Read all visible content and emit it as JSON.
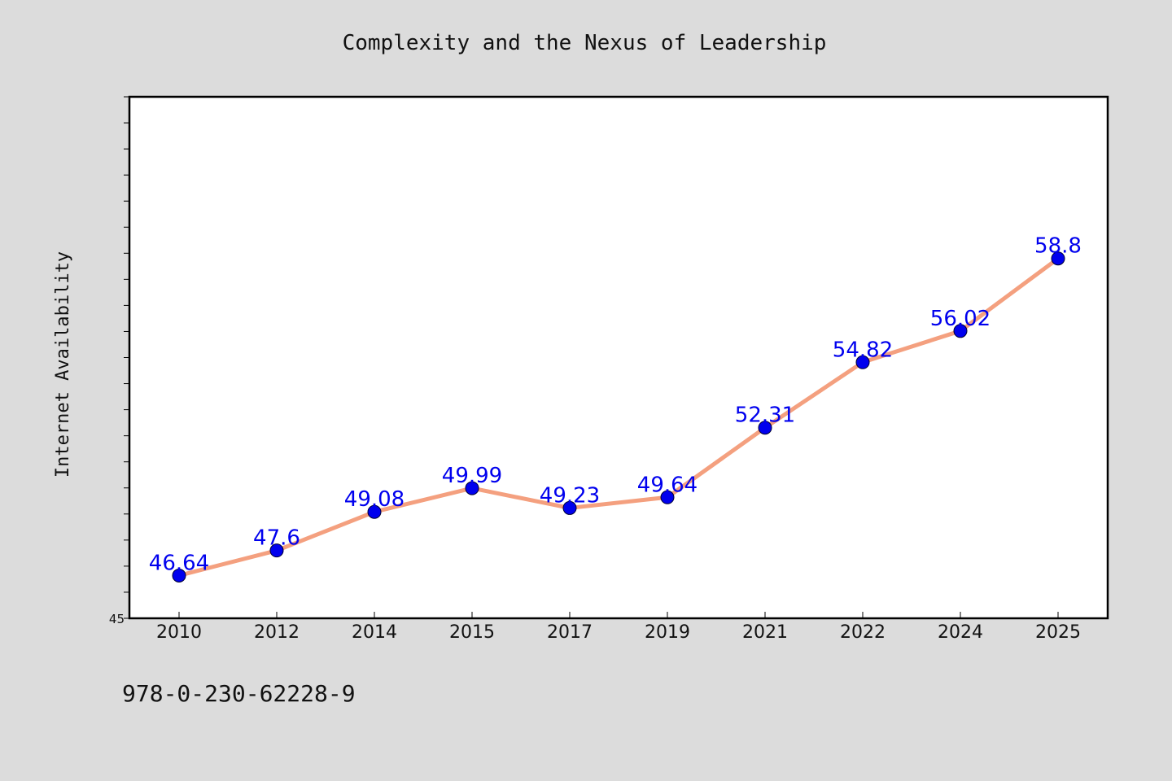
{
  "chart_data": {
    "type": "line",
    "title": "Complexity and the Nexus of Leadership",
    "xlabel": "",
    "ylabel": "Internet Availability",
    "categories": [
      "2010",
      "2012",
      "2014",
      "2015",
      "2017",
      "2019",
      "2021",
      "2022",
      "2024",
      "2025"
    ],
    "values": [
      46.64,
      47.6,
      49.08,
      49.99,
      49.23,
      49.64,
      52.31,
      54.82,
      56.02,
      58.8
    ],
    "data_labels": [
      "46.64",
      "47.6",
      "49.08",
      "49.99",
      "49.23",
      "49.64",
      "52.31",
      "54.82",
      "56.02",
      "58.8"
    ],
    "ytick_labels": [
      "45"
    ],
    "ylim": [
      45,
      65
    ],
    "grid": false,
    "legend": "none",
    "colors": {
      "line": "#f4a07f",
      "marker": "#0000ee",
      "data_label": "#0000ee",
      "background": "#dcdcdc",
      "plot_background": "#ffffff"
    }
  },
  "footnote": "978-0-230-62228-9"
}
